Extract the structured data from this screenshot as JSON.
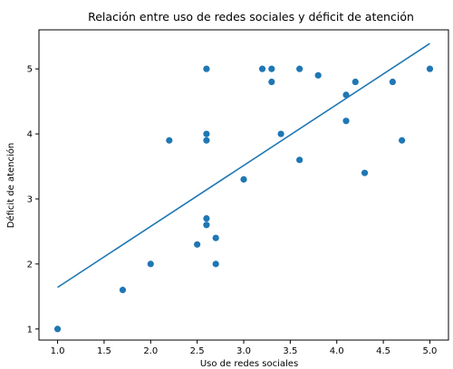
{
  "chart_data": {
    "type": "scatter",
    "title": "Relación entre uso de redes sociales y déficit de atención",
    "xlabel": "Uso de redes sociales",
    "ylabel": "Déficit de atención",
    "xlim": [
      0.8,
      5.2
    ],
    "ylim": [
      0.83,
      5.6
    ],
    "xticks": [
      1.0,
      1.5,
      2.0,
      2.5,
      3.0,
      3.5,
      4.0,
      4.5,
      5.0
    ],
    "xtick_labels": [
      "1.0",
      "1.5",
      "2.0",
      "2.5",
      "3.0",
      "3.5",
      "4.0",
      "4.5",
      "5.0"
    ],
    "yticks": [
      1,
      2,
      3,
      4,
      5
    ],
    "ytick_labels": [
      "1",
      "2",
      "3",
      "4",
      "5"
    ],
    "grid": false,
    "point_color": "#1f77b4",
    "line_color": "#1f77b4",
    "points": [
      {
        "x": 1.0,
        "y": 1.0
      },
      {
        "x": 1.7,
        "y": 1.6
      },
      {
        "x": 2.0,
        "y": 2.0
      },
      {
        "x": 2.2,
        "y": 3.9
      },
      {
        "x": 2.5,
        "y": 2.3
      },
      {
        "x": 2.6,
        "y": 5.0
      },
      {
        "x": 2.6,
        "y": 4.0
      },
      {
        "x": 2.6,
        "y": 3.9
      },
      {
        "x": 2.6,
        "y": 2.7
      },
      {
        "x": 2.6,
        "y": 2.6
      },
      {
        "x": 2.7,
        "y": 2.4
      },
      {
        "x": 2.7,
        "y": 2.0
      },
      {
        "x": 3.0,
        "y": 3.3
      },
      {
        "x": 3.2,
        "y": 5.0
      },
      {
        "x": 3.3,
        "y": 5.0
      },
      {
        "x": 3.3,
        "y": 4.8
      },
      {
        "x": 3.4,
        "y": 4.0
      },
      {
        "x": 3.6,
        "y": 5.0
      },
      {
        "x": 3.6,
        "y": 3.6
      },
      {
        "x": 3.8,
        "y": 4.9
      },
      {
        "x": 4.1,
        "y": 4.6
      },
      {
        "x": 4.1,
        "y": 4.2
      },
      {
        "x": 4.2,
        "y": 4.8
      },
      {
        "x": 4.3,
        "y": 3.4
      },
      {
        "x": 4.6,
        "y": 4.8
      },
      {
        "x": 4.7,
        "y": 3.9
      },
      {
        "x": 5.0,
        "y": 5.0
      }
    ],
    "regression_line": {
      "x": [
        1.0,
        5.0
      ],
      "y": [
        1.64,
        5.39
      ]
    }
  }
}
